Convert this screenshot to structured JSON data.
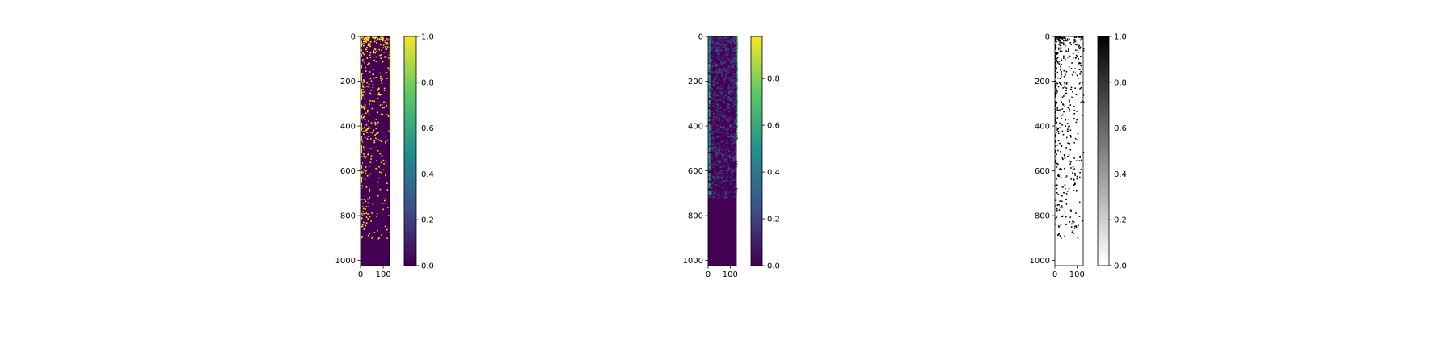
{
  "chart_data": [
    {
      "type": "heatmap",
      "title": "",
      "xlabel": "",
      "ylabel": "",
      "xlim": [
        0,
        128
      ],
      "ylim": [
        1023,
        0
      ],
      "x_ticks": [
        0,
        100
      ],
      "y_ticks": [
        0,
        200,
        400,
        600,
        800,
        1000
      ],
      "colormap": "viridis",
      "colorbar": {
        "range": [
          0,
          1
        ],
        "ticks": [
          "0.0",
          "0.2",
          "0.4",
          "0.6",
          "0.8",
          "1.0"
        ]
      },
      "description_values": "binary mask: sparse 1-valued pixels concentrated in rows 0-500, dense on left and right edge columns",
      "edge_columns_on": {
        "left_rows": [
          0,
          700
        ],
        "right_rows": [
          0,
          430
        ]
      }
    },
    {
      "type": "heatmap",
      "title": "",
      "xlabel": "",
      "ylabel": "",
      "xlim": [
        0,
        128
      ],
      "ylim": [
        1023,
        0
      ],
      "x_ticks": [
        0,
        100
      ],
      "y_ticks": [
        0,
        200,
        400,
        600,
        800,
        1000
      ],
      "colormap": "viridis",
      "colorbar": {
        "range": [
          0,
          0.98
        ],
        "ticks": [
          "0.0",
          "0.2",
          "0.4",
          "0.6",
          "0.8"
        ]
      },
      "description_values": "continuous values mostly near 0 with faint texture in rows 0-700, brighter on edge columns"
    },
    {
      "type": "heatmap",
      "title": "",
      "xlabel": "",
      "ylabel": "",
      "xlim": [
        0,
        128
      ],
      "ylim": [
        1023,
        0
      ],
      "x_ticks": [
        0,
        100
      ],
      "y_ticks": [
        0,
        200,
        400,
        600,
        800,
        1000
      ],
      "colormap": "gray_r",
      "colorbar": {
        "range": [
          0,
          1
        ],
        "ticks": [
          "0.0",
          "0.2",
          "0.4",
          "0.6",
          "0.8",
          "1.0"
        ]
      },
      "description_values": "binary mask: sparse black pixels concentrated in rows 0-500 on white background"
    }
  ],
  "colors": {
    "viridis_low": "#440154",
    "viridis_high": "#fde725",
    "gray_low": "#ffffff",
    "gray_high": "#000000"
  }
}
